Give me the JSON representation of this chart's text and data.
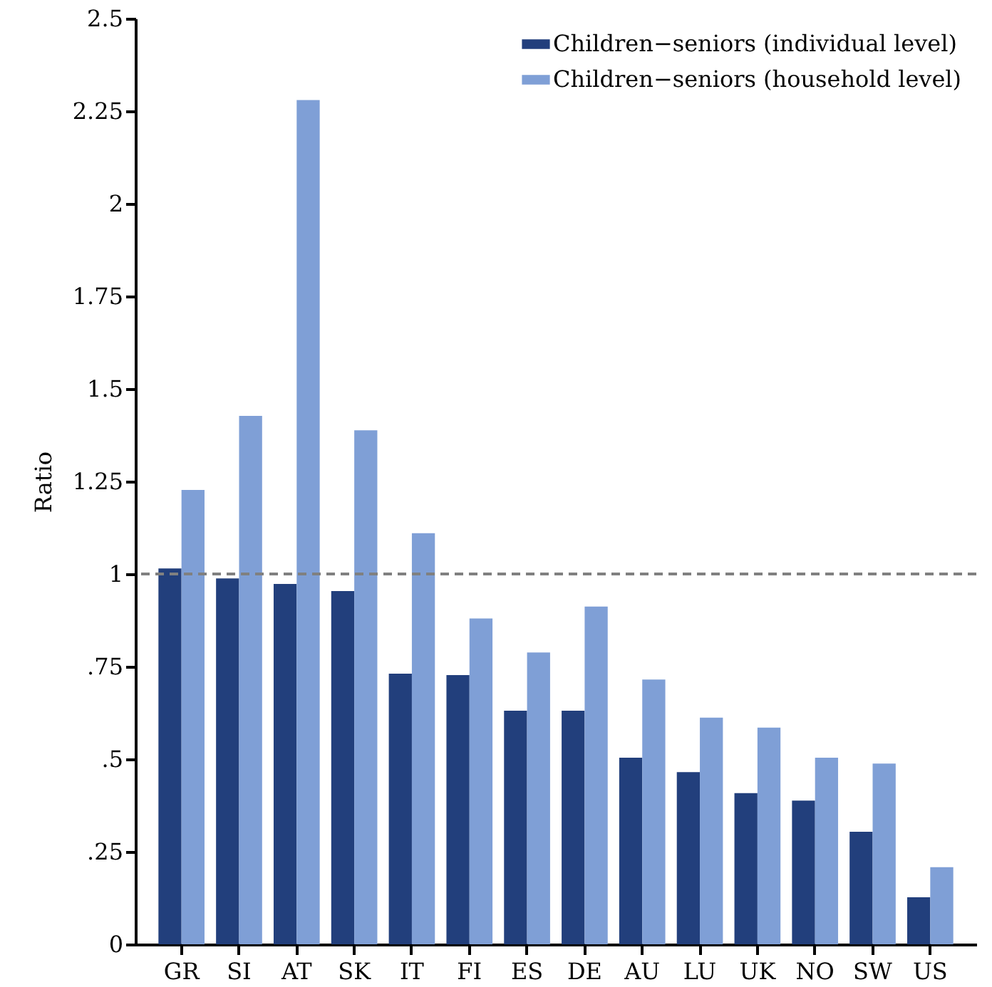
{
  "chart_data": {
    "type": "bar",
    "ylabel": "Ratio",
    "categories": [
      "GR",
      "SI",
      "AT",
      "SK",
      "IT",
      "FI",
      "ES",
      "DE",
      "AU",
      "LU",
      "UK",
      "NO",
      "SW",
      "US"
    ],
    "series": [
      {
        "name": "Children−seniors (individual level)",
        "color": "#223f7c",
        "values": [
          1.015,
          0.988,
          0.973,
          0.954,
          0.731,
          0.727,
          0.631,
          0.631,
          0.504,
          0.465,
          0.408,
          0.388,
          0.304,
          0.127
        ]
      },
      {
        "name": "Children−seniors (household level)",
        "color": "#7f9fd6",
        "values": [
          1.227,
          1.427,
          2.28,
          1.388,
          1.11,
          0.88,
          0.788,
          0.912,
          0.715,
          0.612,
          0.585,
          0.504,
          0.488,
          0.208
        ]
      }
    ],
    "ylim": [
      0,
      2.5
    ],
    "yticks": [
      0,
      {
        "value": 0.25,
        "label": ".25"
      },
      {
        "value": 0.5,
        "label": ".5"
      },
      {
        "value": 0.75,
        "label": ".75"
      },
      1,
      1.25,
      1.5,
      1.75,
      2,
      2.25,
      2.5
    ],
    "ref_lines": [
      {
        "axis": "y",
        "value": 1,
        "color": "#808080",
        "line_style": "dashed"
      }
    ],
    "grid": false,
    "legend": "top right"
  }
}
